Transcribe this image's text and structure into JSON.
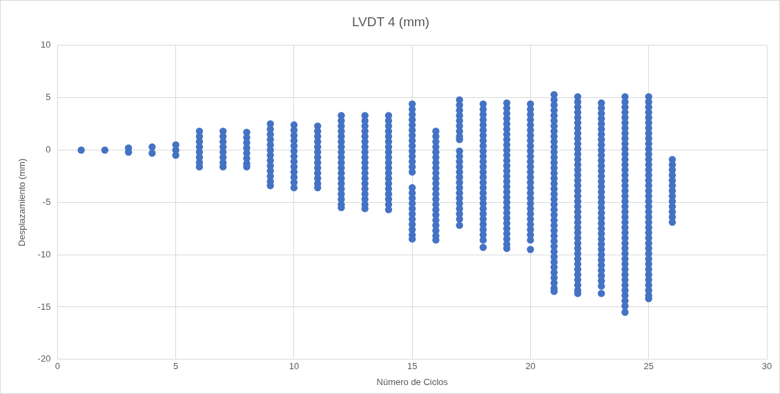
{
  "chart_data": {
    "type": "scatter",
    "title": "LVDT 4 (mm)",
    "xlabel": "Número de Ciclos",
    "ylabel": "Desplazamiento (mm)",
    "xlim": [
      0,
      30
    ],
    "xticks": [
      0,
      5,
      10,
      15,
      20,
      25,
      30
    ],
    "ylim": [
      -20,
      10
    ],
    "yticks": [
      -20,
      -15,
      -10,
      -5,
      0,
      5,
      10
    ],
    "grid": true,
    "legend": false,
    "marker": "circle",
    "series": [
      {
        "color": "#4472c4",
        "x": [
          1
        ],
        "values": [
          0
        ]
      },
      {
        "color": "#4472c4",
        "x": [
          2
        ],
        "values": [
          0
        ]
      },
      {
        "color": "#4472c4",
        "x": [
          3,
          3
        ],
        "values": [
          0.2,
          -0.2
        ]
      },
      {
        "color": "#4472c4",
        "x": [
          4,
          4
        ],
        "values": [
          0.3,
          -0.3
        ]
      },
      {
        "color": "#4472c4",
        "x": [
          5,
          5,
          5
        ],
        "values": [
          0.5,
          0,
          -0.5
        ]
      },
      {
        "color": "#4472c4",
        "x": [
          6,
          6,
          6,
          6,
          6,
          6,
          6,
          6
        ],
        "values": [
          1.8,
          1.3,
          0.8,
          0.3,
          -0.2,
          -0.7,
          -1.2,
          -1.6
        ]
      },
      {
        "color": "#4472c4",
        "x": [
          7,
          7,
          7,
          7,
          7,
          7,
          7,
          7
        ],
        "values": [
          1.8,
          1.3,
          0.8,
          0.3,
          -0.2,
          -0.7,
          -1.2,
          -1.6
        ]
      },
      {
        "color": "#4472c4",
        "x": [
          8,
          8,
          8,
          8,
          8,
          8,
          8,
          8
        ],
        "values": [
          1.7,
          1.2,
          0.7,
          0.2,
          -0.3,
          -0.8,
          -1.3,
          -1.6
        ]
      },
      {
        "color": "#4472c4",
        "x": [
          9,
          9,
          9,
          9,
          9,
          9,
          9,
          9,
          9,
          9,
          9,
          9,
          9
        ],
        "values": [
          2.5,
          2,
          1.5,
          1,
          0.5,
          0,
          -0.5,
          -1,
          -1.5,
          -2,
          -2.5,
          -3,
          -3.4
        ]
      },
      {
        "color": "#4472c4",
        "x": [
          10,
          10,
          10,
          10,
          10,
          10,
          10,
          10,
          10,
          10,
          10,
          10,
          10
        ],
        "values": [
          2.4,
          1.9,
          1.4,
          0.9,
          0.4,
          -0.1,
          -0.6,
          -1.1,
          -1.6,
          -2.1,
          -2.6,
          -3.1,
          -3.6
        ]
      },
      {
        "color": "#4472c4",
        "x": [
          11,
          11,
          11,
          11,
          11,
          11,
          11,
          11,
          11,
          11,
          11,
          11,
          11
        ],
        "values": [
          2.3,
          1.8,
          1.3,
          0.8,
          0.3,
          -0.2,
          -0.7,
          -1.2,
          -1.7,
          -2.2,
          -2.7,
          -3.2,
          -3.6
        ]
      },
      {
        "color": "#4472c4",
        "x": [
          12,
          12,
          12,
          12,
          12,
          12,
          12,
          12,
          12,
          12,
          12,
          12,
          12,
          12,
          12,
          12,
          12,
          12,
          12
        ],
        "values": [
          3.3,
          2.8,
          2.3,
          1.8,
          1.3,
          0.8,
          0.3,
          -0.2,
          -0.7,
          -1.2,
          -1.7,
          -2.2,
          -2.7,
          -3.2,
          -3.7,
          -4.2,
          -4.7,
          -5.2,
          -5.5
        ]
      },
      {
        "color": "#4472c4",
        "x": [
          13,
          13,
          13,
          13,
          13,
          13,
          13,
          13,
          13,
          13,
          13,
          13,
          13,
          13,
          13,
          13,
          13,
          13,
          13
        ],
        "values": [
          3.3,
          2.8,
          2.3,
          1.8,
          1.3,
          0.8,
          0.3,
          -0.2,
          -0.7,
          -1.2,
          -1.7,
          -2.2,
          -2.7,
          -3.2,
          -3.7,
          -4.2,
          -4.7,
          -5.2,
          -5.6
        ]
      },
      {
        "color": "#4472c4",
        "x": [
          14,
          14,
          14,
          14,
          14,
          14,
          14,
          14,
          14,
          14,
          14,
          14,
          14,
          14,
          14,
          14,
          14,
          14,
          14
        ],
        "values": [
          3.3,
          2.8,
          2.3,
          1.8,
          1.3,
          0.8,
          0.3,
          -0.2,
          -0.7,
          -1.2,
          -1.7,
          -2.2,
          -2.7,
          -3.2,
          -3.7,
          -4.2,
          -4.7,
          -5.2,
          -5.7
        ]
      },
      {
        "color": "#4472c4",
        "x": [
          15,
          15,
          15,
          15,
          15,
          15,
          15,
          15,
          15,
          15,
          15,
          15,
          15,
          15,
          15,
          15,
          15,
          15,
          15,
          15,
          15,
          15,
          15,
          15,
          15
        ],
        "values": [
          4.4,
          3.9,
          3.4,
          2.9,
          2.4,
          1.9,
          1.4,
          0.9,
          0.4,
          -0.1,
          -0.6,
          -1.1,
          -1.6,
          -2.1,
          -3.6,
          -4.1,
          -4.6,
          -5.1,
          -5.6,
          -6.1,
          -6.6,
          -7.1,
          -7.6,
          -8.1,
          -8.5
        ]
      },
      {
        "color": "#4472c4",
        "x": [
          16,
          16,
          16,
          16,
          16,
          16,
          16,
          16,
          16,
          16,
          16,
          16,
          16,
          16,
          16,
          16,
          16,
          16,
          16,
          16,
          16,
          16
        ],
        "values": [
          1.8,
          1.3,
          0.8,
          0.3,
          -0.2,
          -0.7,
          -1.2,
          -1.7,
          -2.2,
          -2.7,
          -3.2,
          -3.7,
          -4.2,
          -4.7,
          -5.2,
          -5.7,
          -6.2,
          -6.7,
          -7.2,
          -7.7,
          -8.2,
          -8.6
        ]
      },
      {
        "color": "#4472c4",
        "x": [
          17,
          17,
          17,
          17,
          17,
          17,
          17,
          17,
          17,
          17,
          17,
          17,
          17,
          17,
          17,
          17,
          17,
          17,
          17,
          17,
          17,
          17,
          17,
          17
        ],
        "values": [
          4.8,
          4.3,
          3.8,
          3.3,
          2.8,
          2.3,
          1.8,
          1.3,
          1.0,
          -0.1,
          -0.6,
          -1.1,
          -1.6,
          -2.1,
          -2.6,
          -3.1,
          -3.6,
          -4.1,
          -4.6,
          -5.1,
          -5.6,
          -6.1,
          -6.6,
          -7.2
        ]
      },
      {
        "color": "#4472c4",
        "x": [
          18,
          18,
          18,
          18,
          18,
          18,
          18,
          18,
          18,
          18,
          18,
          18,
          18,
          18,
          18,
          18,
          18,
          18,
          18,
          18,
          18,
          18,
          18,
          18,
          18,
          18,
          18,
          18
        ],
        "values": [
          4.4,
          3.9,
          3.4,
          2.9,
          2.4,
          1.9,
          1.4,
          0.9,
          0.4,
          -0.1,
          -0.6,
          -1.1,
          -1.6,
          -2.1,
          -2.6,
          -3.1,
          -3.6,
          -4.1,
          -4.6,
          -5.1,
          -5.6,
          -6.1,
          -6.6,
          -7.1,
          -7.6,
          -8.1,
          -8.6,
          -9.3
        ]
      },
      {
        "color": "#4472c4",
        "x": [
          19,
          19,
          19,
          19,
          19,
          19,
          19,
          19,
          19,
          19,
          19,
          19,
          19,
          19,
          19,
          19,
          19,
          19,
          19,
          19,
          19,
          19,
          19,
          19,
          19,
          19,
          19,
          19,
          19
        ],
        "values": [
          4.5,
          4,
          3.5,
          3,
          2.5,
          2,
          1.5,
          1,
          0.5,
          0,
          -0.5,
          -1,
          -1.5,
          -2,
          -2.5,
          -3,
          -3.5,
          -4,
          -4.5,
          -5,
          -5.5,
          -6,
          -6.5,
          -7,
          -7.5,
          -8,
          -8.5,
          -9,
          -9.4
        ]
      },
      {
        "color": "#4472c4",
        "x": [
          20,
          20,
          20,
          20,
          20,
          20,
          20,
          20,
          20,
          20,
          20,
          20,
          20,
          20,
          20,
          20,
          20,
          20,
          20,
          20,
          20,
          20,
          20,
          20,
          20,
          20,
          20,
          20
        ],
        "values": [
          4.4,
          3.9,
          3.4,
          2.9,
          2.4,
          1.9,
          1.4,
          0.9,
          0.4,
          -0.1,
          -0.6,
          -1.1,
          -1.6,
          -2.1,
          -2.6,
          -3.1,
          -3.6,
          -4.1,
          -4.6,
          -5.1,
          -5.6,
          -6.1,
          -6.6,
          -7.1,
          -7.6,
          -8.1,
          -8.6,
          -9.5
        ]
      },
      {
        "color": "#4472c4",
        "x": [
          21,
          21,
          21,
          21,
          21,
          21,
          21,
          21,
          21,
          21,
          21,
          21,
          21,
          21,
          21,
          21,
          21,
          21,
          21,
          21,
          21,
          21,
          21,
          21,
          21,
          21,
          21,
          21,
          21,
          21,
          21,
          21,
          21,
          21,
          21,
          21,
          21,
          21,
          21
        ],
        "values": [
          5.3,
          4.8,
          4.3,
          3.8,
          3.3,
          2.8,
          2.3,
          1.8,
          1.3,
          0.8,
          0.3,
          -0.2,
          -0.7,
          -1.2,
          -1.7,
          -2.2,
          -2.7,
          -3.2,
          -3.7,
          -4.2,
          -4.7,
          -5.2,
          -5.7,
          -6.2,
          -6.7,
          -7.2,
          -7.7,
          -8.2,
          -8.7,
          -9.2,
          -9.7,
          -10.2,
          -10.7,
          -11.2,
          -11.7,
          -12.2,
          -12.7,
          -13.2,
          -13.5
        ]
      },
      {
        "color": "#4472c4",
        "x": [
          22,
          22,
          22,
          22,
          22,
          22,
          22,
          22,
          22,
          22,
          22,
          22,
          22,
          22,
          22,
          22,
          22,
          22,
          22,
          22,
          22,
          22,
          22,
          22,
          22,
          22,
          22,
          22,
          22,
          22,
          22,
          22,
          22,
          22,
          22,
          22,
          22,
          22,
          22
        ],
        "values": [
          5.1,
          4.6,
          4.1,
          3.6,
          3.1,
          2.6,
          2.1,
          1.6,
          1.1,
          0.6,
          0.1,
          -0.4,
          -0.9,
          -1.4,
          -1.9,
          -2.4,
          -2.9,
          -3.4,
          -3.9,
          -4.4,
          -4.9,
          -5.4,
          -5.9,
          -6.4,
          -6.9,
          -7.4,
          -7.9,
          -8.4,
          -8.9,
          -9.4,
          -9.9,
          -10.4,
          -10.9,
          -11.4,
          -11.9,
          -12.4,
          -12.9,
          -13.4,
          -13.7
        ]
      },
      {
        "color": "#4472c4",
        "x": [
          23,
          23,
          23,
          23,
          23,
          23,
          23,
          23,
          23,
          23,
          23,
          23,
          23,
          23,
          23,
          23,
          23,
          23,
          23,
          23,
          23,
          23,
          23,
          23,
          23,
          23,
          23,
          23,
          23,
          23,
          23,
          23,
          23,
          23,
          23,
          23,
          23
        ],
        "values": [
          4.5,
          4,
          3.5,
          3,
          2.5,
          2,
          1.5,
          1,
          0.5,
          0,
          -0.5,
          -1,
          -1.5,
          -2,
          -2.5,
          -3,
          -3.5,
          -4,
          -4.5,
          -5,
          -5.5,
          -6,
          -6.5,
          -7,
          -7.5,
          -8,
          -8.5,
          -9,
          -9.5,
          -10,
          -10.5,
          -11,
          -11.5,
          -12,
          -12.5,
          -13,
          -13.7
        ]
      },
      {
        "color": "#4472c4",
        "x": [
          24,
          24,
          24,
          24,
          24,
          24,
          24,
          24,
          24,
          24,
          24,
          24,
          24,
          24,
          24,
          24,
          24,
          24,
          24,
          24,
          24,
          24,
          24,
          24,
          24,
          24,
          24,
          24,
          24,
          24,
          24,
          24,
          24,
          24,
          24,
          24,
          24,
          24,
          24,
          24,
          24,
          24
        ],
        "values": [
          5.1,
          4.6,
          4.1,
          3.6,
          3.1,
          2.6,
          2.1,
          1.6,
          1.1,
          0.6,
          0.1,
          -0.4,
          -0.9,
          -1.4,
          -1.9,
          -2.4,
          -2.9,
          -3.4,
          -3.9,
          -4.4,
          -4.9,
          -5.4,
          -5.9,
          -6.4,
          -6.9,
          -7.4,
          -7.9,
          -8.4,
          -8.9,
          -9.4,
          -9.9,
          -10.4,
          -10.9,
          -11.4,
          -11.9,
          -12.4,
          -12.9,
          -13.4,
          -13.9,
          -14.4,
          -14.9,
          -15.5
        ]
      },
      {
        "color": "#4472c4",
        "x": [
          25,
          25,
          25,
          25,
          25,
          25,
          25,
          25,
          25,
          25,
          25,
          25,
          25,
          25,
          25,
          25,
          25,
          25,
          25,
          25,
          25,
          25,
          25,
          25,
          25,
          25,
          25,
          25,
          25,
          25,
          25,
          25,
          25,
          25,
          25,
          25,
          25,
          25,
          25,
          25
        ],
        "values": [
          5.1,
          4.6,
          4.1,
          3.6,
          3.1,
          2.6,
          2.1,
          1.6,
          1.1,
          0.6,
          0.1,
          -0.4,
          -0.9,
          -1.4,
          -1.9,
          -2.4,
          -2.9,
          -3.4,
          -3.9,
          -4.4,
          -4.9,
          -5.4,
          -5.9,
          -6.4,
          -6.9,
          -7.4,
          -7.9,
          -8.4,
          -8.9,
          -9.4,
          -9.9,
          -10.4,
          -10.9,
          -11.4,
          -11.9,
          -12.4,
          -12.9,
          -13.4,
          -13.9,
          -14.2
        ]
      },
      {
        "color": "#4472c4",
        "x": [
          26,
          26,
          26,
          26,
          26,
          26,
          26,
          26,
          26,
          26,
          26,
          26,
          26
        ],
        "values": [
          -0.9,
          -1.4,
          -1.9,
          -2.4,
          -2.9,
          -3.4,
          -3.9,
          -4.4,
          -4.9,
          -5.4,
          -5.9,
          -6.4,
          -6.9
        ]
      }
    ]
  }
}
